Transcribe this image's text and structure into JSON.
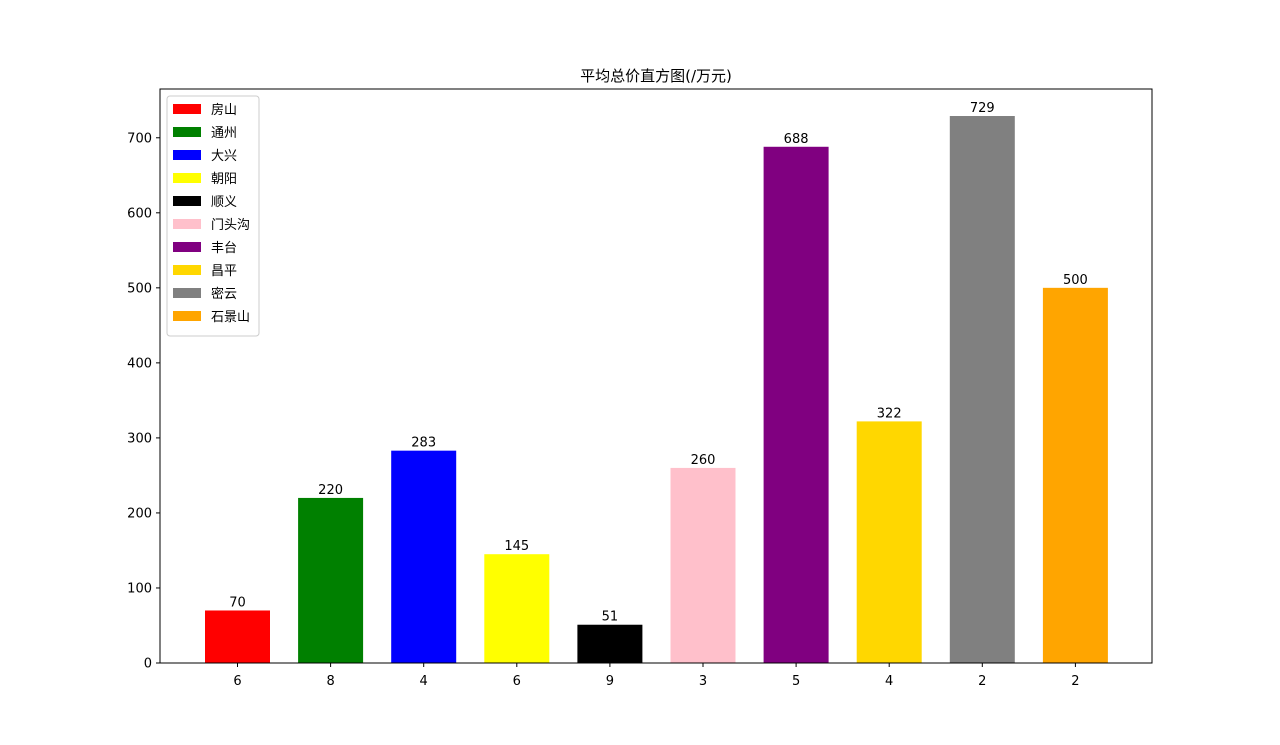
{
  "chart_data": {
    "type": "bar",
    "title": "平均总价直方图(/万元)",
    "xlabel": "",
    "ylabel": "",
    "categories": [
      "6",
      "8",
      "4",
      "6",
      "9",
      "3",
      "5",
      "4",
      "2",
      "2"
    ],
    "values": [
      70,
      220,
      283,
      145,
      51,
      260,
      688,
      322,
      729,
      500
    ],
    "bar_names": [
      "房山",
      "通州",
      "大兴",
      "朝阳",
      "顺义",
      "门头沟",
      "丰台",
      "昌平",
      "密云",
      "石景山"
    ],
    "colors": [
      "#ff0000",
      "#008000",
      "#0000ff",
      "#ffff00",
      "#000000",
      "#ffc0cb",
      "#800080",
      "#ffd700",
      "#808080",
      "#ffa500"
    ],
    "ylim": [
      0,
      765
    ],
    "yticks": [
      0,
      100,
      200,
      300,
      400,
      500,
      600,
      700
    ],
    "grid": false,
    "legend_position": "top-left"
  }
}
